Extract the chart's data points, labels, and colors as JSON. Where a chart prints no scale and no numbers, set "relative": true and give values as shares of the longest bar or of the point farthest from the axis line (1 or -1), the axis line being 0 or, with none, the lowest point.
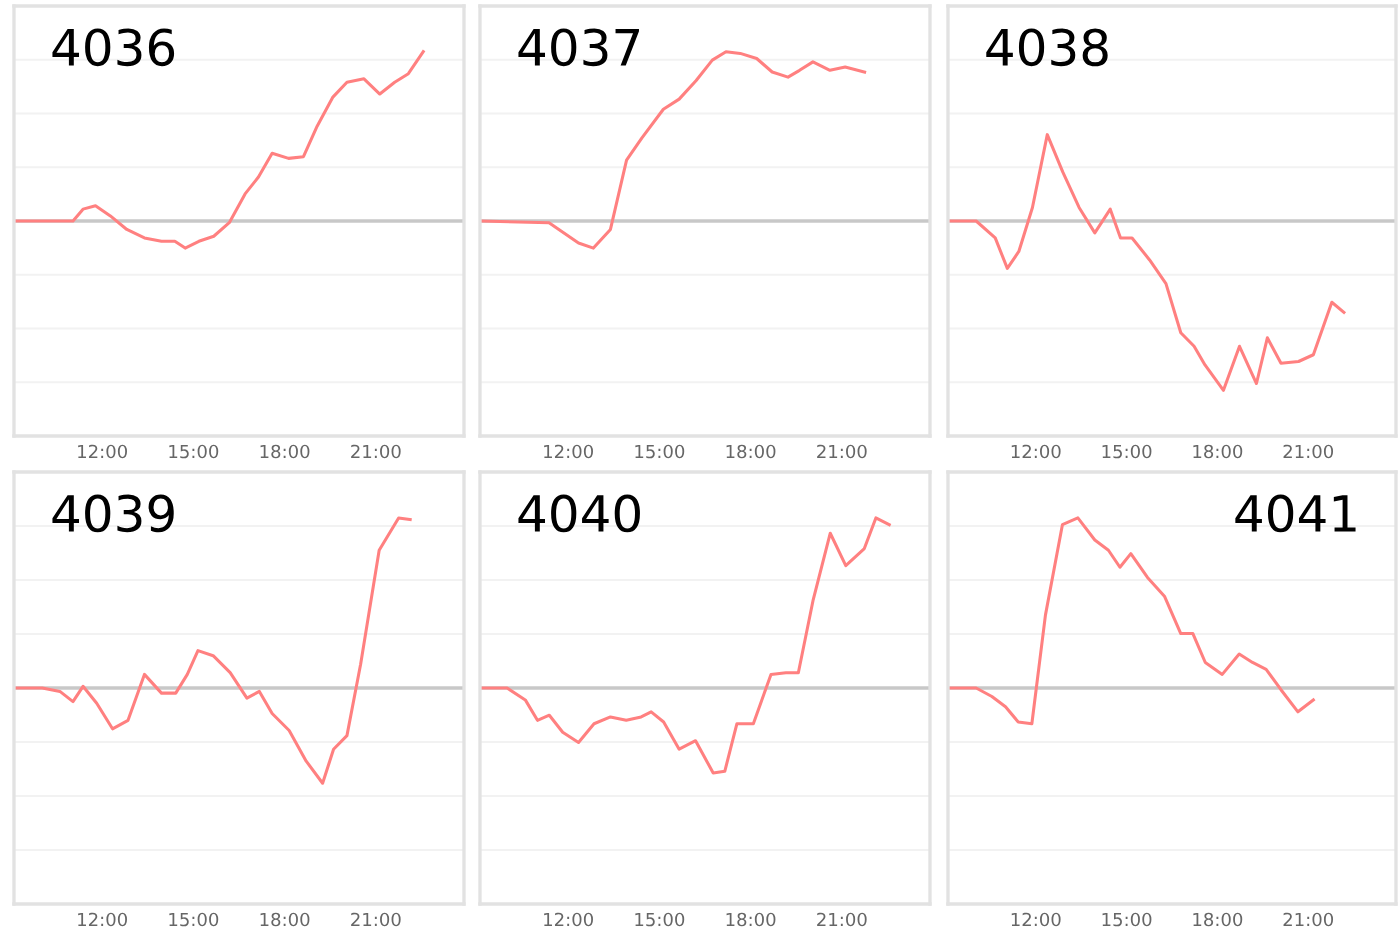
{
  "chart_data": [
    {
      "type": "line",
      "title": "4036",
      "relative": true,
      "grid": "y",
      "xlim": [
        9.1,
        23.9
      ],
      "xticks": [
        {
          "value": 12,
          "label": "12:00"
        },
        {
          "value": 15,
          "label": "15:00"
        },
        {
          "value": 18,
          "label": "18:00"
        },
        {
          "value": 21,
          "label": "21:00"
        }
      ],
      "series": [
        {
          "color": "#ff8080",
          "x": [
            9.14,
            11.04,
            11.37,
            11.78,
            12.27,
            12.81,
            13.39,
            13.95,
            14.39,
            14.73,
            15.18,
            15.67,
            16.18,
            16.7,
            17.14,
            17.59,
            18.13,
            18.62,
            19.07,
            19.58,
            20.05,
            20.61,
            21.13,
            21.62,
            22.07,
            22.56
          ],
          "values": [
            0,
            0,
            0.07,
            0.09,
            0.03,
            -0.05,
            -0.1,
            -0.12,
            -0.12,
            -0.16,
            -0.12,
            -0.09,
            -0.01,
            0.16,
            0.26,
            0.4,
            0.37,
            0.38,
            0.56,
            0.73,
            0.82,
            0.84,
            0.75,
            0.82,
            0.87,
            1
          ]
        }
      ]
    },
    {
      "type": "line",
      "title": "4037",
      "relative": true,
      "grid": "y",
      "xlim": [
        9.1,
        23.9
      ],
      "xticks": [
        {
          "value": 12,
          "label": "12:00"
        },
        {
          "value": 15,
          "label": "15:00"
        },
        {
          "value": 18,
          "label": "18:00"
        },
        {
          "value": 21,
          "label": "21:00"
        }
      ],
      "series": [
        {
          "color": "#ff8080",
          "x": [
            9.14,
            11.37,
            12.34,
            12.83,
            13.39,
            13.92,
            14.42,
            15.13,
            15.65,
            16.21,
            16.74,
            17.19,
            17.66,
            18.2,
            18.71,
            19.23,
            19.61,
            20.05,
            20.61,
            21.11,
            21.75
          ],
          "values": [
            0,
            -0.01,
            -0.13,
            -0.16,
            -0.05,
            0.36,
            0.49,
            0.66,
            0.72,
            0.83,
            0.95,
            1,
            0.99,
            0.96,
            0.88,
            0.85,
            0.89,
            0.94,
            0.89,
            0.91,
            0.88
          ]
        }
      ]
    },
    {
      "type": "line",
      "title": "4038",
      "relative": true,
      "grid": "y",
      "xlim": [
        9.1,
        23.9
      ],
      "xticks": [
        {
          "value": 12,
          "label": "12:00"
        },
        {
          "value": 15,
          "label": "15:00"
        },
        {
          "value": 18,
          "label": "18:00"
        },
        {
          "value": 21,
          "label": "21:00"
        }
      ],
      "series": [
        {
          "color": "#ff8080",
          "x": [
            9.14,
            10.03,
            10.66,
            11.06,
            11.44,
            11.89,
            12.38,
            12.89,
            13.43,
            13.95,
            14.46,
            14.8,
            15.18,
            15.76,
            16.3,
            16.79,
            17.23,
            17.59,
            18.2,
            18.73,
            19.29,
            19.65,
            20.1,
            20.68,
            21.17,
            21.78,
            22.18
          ],
          "values": [
            0,
            0,
            -0.1,
            -0.28,
            -0.18,
            0.08,
            0.51,
            0.29,
            0.08,
            -0.07,
            0.07,
            -0.1,
            -0.1,
            -0.23,
            -0.37,
            -0.66,
            -0.74,
            -0.85,
            -1,
            -0.74,
            -0.96,
            -0.69,
            -0.84,
            -0.83,
            -0.79,
            -0.48,
            -0.54
          ]
        }
      ]
    },
    {
      "type": "line",
      "title": "4039",
      "relative": true,
      "grid": "y",
      "xlim": [
        9.1,
        23.9
      ],
      "xticks": [
        {
          "value": 12,
          "label": "12:00"
        },
        {
          "value": 15,
          "label": "15:00"
        },
        {
          "value": 18,
          "label": "18:00"
        },
        {
          "value": 21,
          "label": "21:00"
        }
      ],
      "series": [
        {
          "color": "#ff8080",
          "x": [
            9.14,
            10.03,
            10.61,
            11.04,
            11.37,
            11.82,
            12.34,
            12.85,
            13.39,
            13.95,
            14.42,
            14.8,
            15.15,
            15.65,
            16.21,
            16.76,
            17.17,
            17.59,
            18.15,
            18.71,
            19.25,
            19.61,
            20.05,
            20.5,
            21.11,
            21.75,
            22.13
          ],
          "values": [
            0,
            0,
            -0.02,
            -0.08,
            0.01,
            -0.09,
            -0.24,
            -0.19,
            0.08,
            -0.03,
            -0.03,
            0.08,
            0.22,
            0.19,
            0.09,
            -0.06,
            -0.02,
            -0.15,
            -0.25,
            -0.43,
            -0.56,
            -0.36,
            -0.28,
            0.14,
            0.81,
            1,
            0.99
          ]
        }
      ]
    },
    {
      "type": "line",
      "title": "4040",
      "relative": true,
      "grid": "y",
      "xlim": [
        9.1,
        23.9
      ],
      "xticks": [
        {
          "value": 12,
          "label": "12:00"
        },
        {
          "value": 15,
          "label": "15:00"
        },
        {
          "value": 18,
          "label": "18:00"
        },
        {
          "value": 21,
          "label": "21:00"
        }
      ],
      "series": [
        {
          "color": "#ff8080",
          "x": [
            9.14,
            9.99,
            10.59,
            10.99,
            11.38,
            11.82,
            12.34,
            12.85,
            13.39,
            13.91,
            14.4,
            14.73,
            15.14,
            15.65,
            16.19,
            16.77,
            17.15,
            17.55,
            18.09,
            18.67,
            19.16,
            19.57,
            20.06,
            20.62,
            21.13,
            21.74,
            22.12,
            22.56
          ],
          "values": [
            0,
            0,
            -0.07,
            -0.19,
            -0.16,
            -0.26,
            -0.32,
            -0.21,
            -0.17,
            -0.19,
            -0.17,
            -0.14,
            -0.2,
            -0.36,
            -0.31,
            -0.5,
            -0.49,
            -0.21,
            -0.21,
            0.08,
            0.09,
            0.09,
            0.52,
            0.91,
            0.72,
            0.82,
            1,
            0.96
          ]
        }
      ]
    },
    {
      "type": "line",
      "title": "4041",
      "relative": true,
      "grid": "y",
      "xlim": [
        9.1,
        23.9
      ],
      "xticks": [
        {
          "value": 12,
          "label": "12:00"
        },
        {
          "value": 15,
          "label": "15:00"
        },
        {
          "value": 18,
          "label": "18:00"
        },
        {
          "value": 21,
          "label": "21:00"
        }
      ],
      "series": [
        {
          "color": "#ff8080",
          "x": [
            9.14,
            10.03,
            10.55,
            11.0,
            11.42,
            11.87,
            12.32,
            12.88,
            13.39,
            13.95,
            14.4,
            14.78,
            15.14,
            15.69,
            16.25,
            16.79,
            17.19,
            17.6,
            18.16,
            18.72,
            19.16,
            19.61,
            20.1,
            20.66,
            21.17
          ],
          "values": [
            0,
            0,
            -0.05,
            -0.11,
            -0.2,
            -0.21,
            0.43,
            0.96,
            1,
            0.87,
            0.81,
            0.71,
            0.79,
            0.65,
            0.54,
            0.32,
            0.32,
            0.15,
            0.08,
            0.2,
            0.15,
            0.11,
            -0.01,
            -0.14,
            -0.07
          ]
        }
      ]
    }
  ]
}
